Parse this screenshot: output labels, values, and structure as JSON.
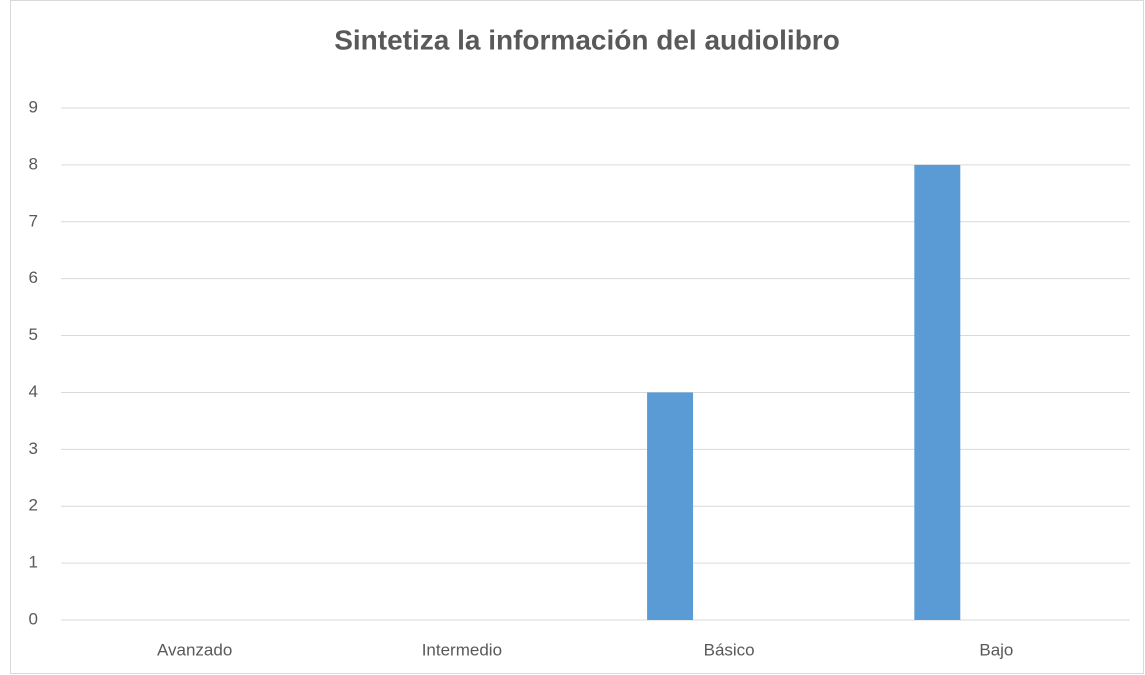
{
  "chart_data": {
    "type": "bar",
    "title": "Sintetiza la información del audiolibro",
    "categories": [
      "Avanzado",
      "Intermedio",
      "Básico",
      "Bajo"
    ],
    "values": [
      0,
      0,
      4,
      8
    ],
    "color": "#5b9bd5",
    "ylim": [
      0,
      9
    ],
    "yticks": [
      0,
      1,
      2,
      3,
      4,
      5,
      6,
      7,
      8,
      9
    ],
    "grid": true
  }
}
